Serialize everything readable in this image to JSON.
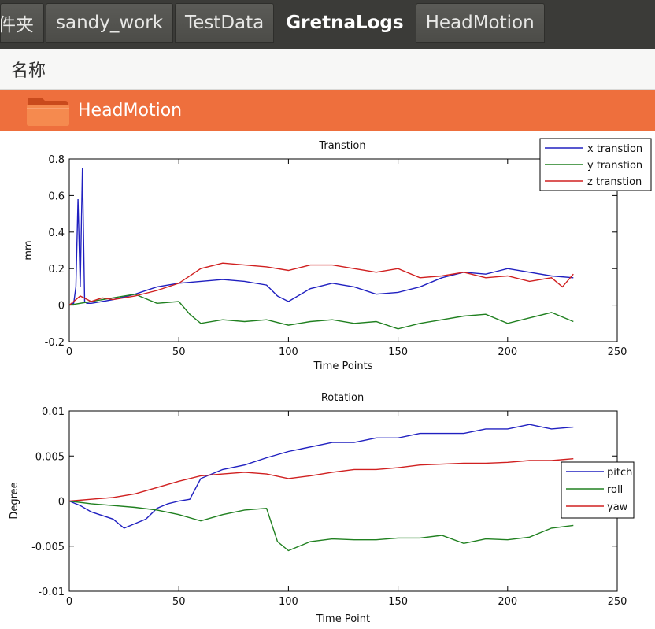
{
  "tabs": [
    {
      "label": "件夹",
      "active": false
    },
    {
      "label": "sandy_work",
      "active": false
    },
    {
      "label": "TestData",
      "active": false
    },
    {
      "label": "GretnaLogs",
      "active": true
    },
    {
      "label": "HeadMotion",
      "active": false
    }
  ],
  "column_header": {
    "label": "名称"
  },
  "selected_item": {
    "name": "HeadMotion",
    "icon": "folder-icon",
    "highlight": "#ee6f3d"
  },
  "chart_data": [
    {
      "type": "line",
      "title": "Transtion",
      "xlabel": "Time Points",
      "ylabel": "mm",
      "xlim": [
        0,
        250
      ],
      "ylim": [
        -0.2,
        0.8
      ],
      "xticks": [
        0,
        50,
        100,
        150,
        200,
        250
      ],
      "yticks": [
        -0.2,
        0,
        0.2,
        0.4,
        0.6,
        0.8
      ],
      "ytick_labels": [
        "-0.2",
        "0",
        "0.2",
        "0.4",
        "0.6",
        "0.8"
      ],
      "legend": "top-right",
      "series": [
        {
          "name": "x transtion",
          "color": "#2020c0",
          "x": [
            0,
            2,
            3,
            4,
            5,
            6,
            7,
            8,
            10,
            15,
            20,
            30,
            40,
            50,
            60,
            70,
            80,
            90,
            95,
            100,
            110,
            120,
            130,
            140,
            150,
            160,
            170,
            180,
            190,
            200,
            210,
            220,
            230
          ],
          "y": [
            0,
            0.01,
            0.1,
            0.58,
            0.1,
            0.75,
            0.02,
            0.01,
            0.01,
            0.02,
            0.03,
            0.06,
            0.1,
            0.12,
            0.13,
            0.14,
            0.13,
            0.11,
            0.05,
            0.02,
            0.09,
            0.12,
            0.1,
            0.06,
            0.07,
            0.1,
            0.15,
            0.18,
            0.17,
            0.2,
            0.18,
            0.16,
            0.15
          ]
        },
        {
          "name": "y transtion",
          "color": "#208020",
          "x": [
            0,
            10,
            20,
            30,
            40,
            50,
            55,
            60,
            70,
            80,
            90,
            100,
            110,
            120,
            130,
            140,
            150,
            160,
            170,
            180,
            190,
            200,
            210,
            220,
            230
          ],
          "y": [
            0,
            0.02,
            0.04,
            0.06,
            0.01,
            0.02,
            -0.05,
            -0.1,
            -0.08,
            -0.09,
            -0.08,
            -0.11,
            -0.09,
            -0.08,
            -0.1,
            -0.09,
            -0.13,
            -0.1,
            -0.08,
            -0.06,
            -0.05,
            -0.1,
            -0.07,
            -0.04,
            -0.09
          ]
        },
        {
          "name": "z transtion",
          "color": "#d02020",
          "x": [
            0,
            5,
            10,
            15,
            20,
            30,
            40,
            50,
            60,
            70,
            80,
            90,
            100,
            110,
            120,
            130,
            140,
            150,
            160,
            170,
            180,
            190,
            200,
            210,
            220,
            225,
            230
          ],
          "y": [
            0,
            0.05,
            0.02,
            0.04,
            0.03,
            0.05,
            0.08,
            0.12,
            0.2,
            0.23,
            0.22,
            0.21,
            0.19,
            0.22,
            0.22,
            0.2,
            0.18,
            0.2,
            0.15,
            0.16,
            0.18,
            0.15,
            0.16,
            0.13,
            0.15,
            0.1,
            0.17
          ]
        }
      ]
    },
    {
      "type": "line",
      "title": "Rotation",
      "xlabel": "Time Point",
      "ylabel": "Degree",
      "xlim": [
        0,
        250
      ],
      "ylim": [
        -0.01,
        0.01
      ],
      "xticks": [
        0,
        50,
        100,
        150,
        200,
        250
      ],
      "yticks": [
        -0.01,
        -0.005,
        0,
        0.005,
        0.01
      ],
      "ytick_labels": [
        "-0.01",
        "-0.005",
        "0",
        "0.005",
        "0.01"
      ],
      "legend": "right",
      "series": [
        {
          "name": "pitch",
          "color": "#2020c0",
          "x": [
            0,
            5,
            10,
            20,
            25,
            30,
            35,
            40,
            45,
            50,
            55,
            60,
            70,
            80,
            90,
            100,
            110,
            120,
            130,
            140,
            150,
            160,
            170,
            180,
            190,
            200,
            210,
            220,
            230
          ],
          "y": [
            0,
            -0.0005,
            -0.0012,
            -0.002,
            -0.003,
            -0.0025,
            -0.002,
            -0.0008,
            -0.0003,
            0,
            0.0002,
            0.0025,
            0.0035,
            0.004,
            0.0048,
            0.0055,
            0.006,
            0.0065,
            0.0065,
            0.007,
            0.007,
            0.0075,
            0.0075,
            0.0075,
            0.008,
            0.008,
            0.0085,
            0.008,
            0.0082
          ]
        },
        {
          "name": "roll",
          "color": "#208020",
          "x": [
            0,
            10,
            20,
            30,
            40,
            50,
            60,
            70,
            80,
            90,
            95,
            100,
            110,
            120,
            130,
            140,
            150,
            160,
            170,
            180,
            190,
            200,
            210,
            220,
            230
          ],
          "y": [
            0,
            -0.0003,
            -0.0005,
            -0.0007,
            -0.001,
            -0.0015,
            -0.0022,
            -0.0015,
            -0.001,
            -0.0008,
            -0.0045,
            -0.0055,
            -0.0045,
            -0.0042,
            -0.0043,
            -0.0043,
            -0.0041,
            -0.0041,
            -0.0038,
            -0.0047,
            -0.0042,
            -0.0043,
            -0.004,
            -0.003,
            -0.0027
          ]
        },
        {
          "name": "yaw",
          "color": "#d02020",
          "x": [
            0,
            10,
            20,
            30,
            40,
            50,
            60,
            70,
            80,
            90,
            100,
            110,
            120,
            130,
            140,
            150,
            160,
            170,
            180,
            190,
            200,
            210,
            220,
            230
          ],
          "y": [
            0,
            0.0002,
            0.0004,
            0.0008,
            0.0015,
            0.0022,
            0.0028,
            0.003,
            0.0032,
            0.003,
            0.0025,
            0.0028,
            0.0032,
            0.0035,
            0.0035,
            0.0037,
            0.004,
            0.0041,
            0.0042,
            0.0042,
            0.0043,
            0.0045,
            0.0045,
            0.0047
          ]
        }
      ]
    }
  ]
}
